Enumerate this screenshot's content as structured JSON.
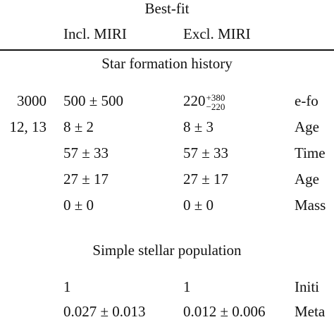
{
  "header": {
    "title": "Best-fit",
    "columns": [
      "Incl. MIRI",
      "Excl. MIRI"
    ]
  },
  "sections": [
    {
      "title": "Star formation history",
      "rows": [
        [
          "3000",
          "500 ± 500",
          {
            "value": "220",
            "upper": "+380",
            "lower": "−220"
          },
          "e-fo"
        ],
        [
          "12, 13",
          "8 ± 2",
          "8 ± 3",
          "Age"
        ],
        [
          null,
          "57 ± 33",
          "57 ± 33",
          "Time"
        ],
        [
          null,
          "27 ± 17",
          "27 ± 17",
          "Age"
        ],
        [
          null,
          "0 ± 0",
          "0 ± 0",
          "Mass"
        ]
      ]
    },
    {
      "title": "Simple stellar population",
      "rows": [
        [
          null,
          "1",
          "1",
          "Initi"
        ],
        [
          null,
          "0.027 ± 0.013",
          "0.012 ± 0.006",
          "Meta"
        ]
      ]
    }
  ]
}
